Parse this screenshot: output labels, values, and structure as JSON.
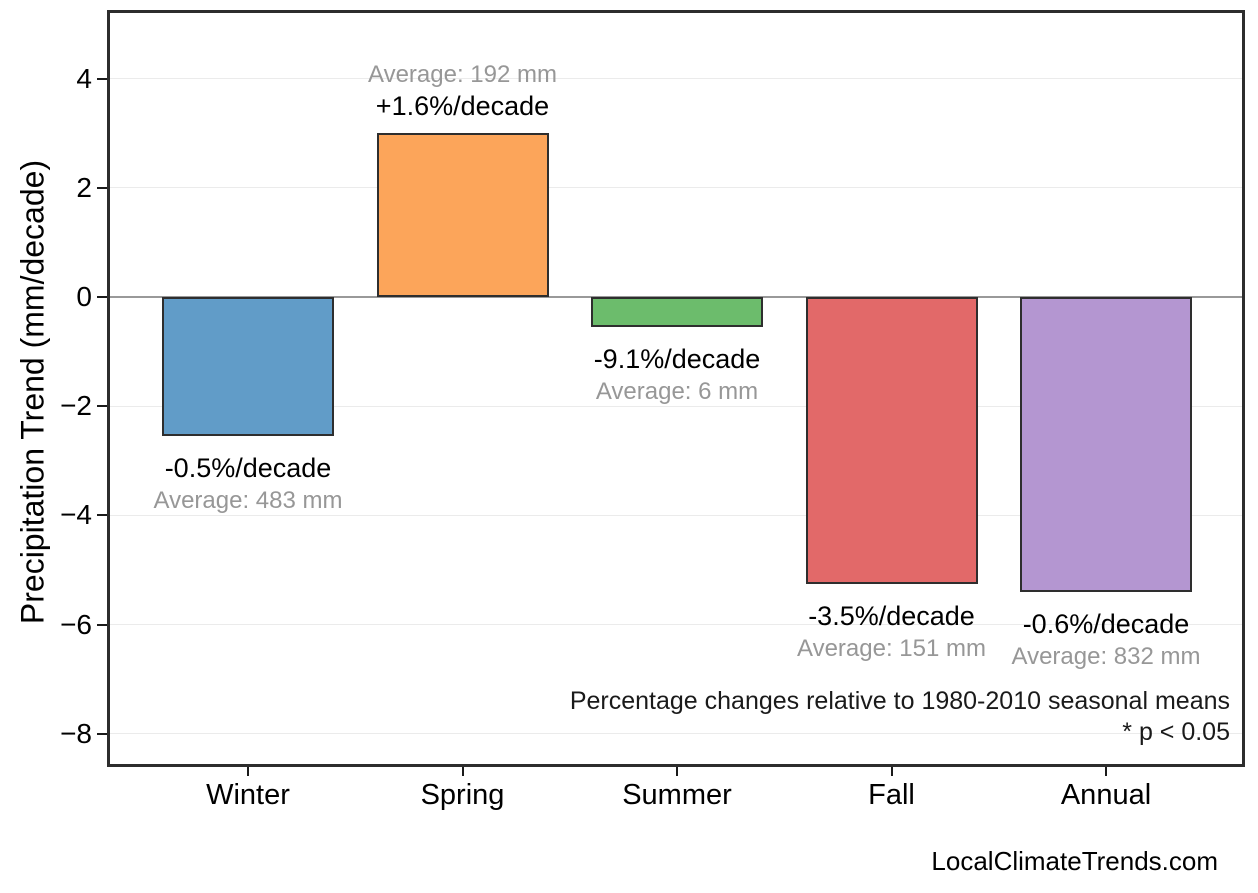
{
  "watermark": "LocalClimateTrends.com",
  "chart_data": {
    "type": "bar",
    "title": "",
    "xlabel": "",
    "ylabel": "Precipitation Trend (mm/decade)",
    "categories": [
      "Winter",
      "Spring",
      "Summer",
      "Fall",
      "Annual"
    ],
    "values": [
      -2.55,
      3.0,
      -0.55,
      -5.25,
      -5.4
    ],
    "pct_labels": [
      "-0.5%/decade",
      "+1.6%/decade",
      "-9.1%/decade",
      "-3.5%/decade",
      "-0.6%/decade"
    ],
    "avg_labels": [
      "Average: 483 mm",
      "Average: 192 mm",
      "Average: 6 mm",
      "Average: 151 mm",
      "Average: 832 mm"
    ],
    "bar_colors": [
      "#619CC8",
      "#FCA55A",
      "#6CBC6C",
      "#E26969",
      "#B496D1"
    ],
    "bar_edge_color": "#2e2e2e",
    "yticks": [
      4,
      2,
      0,
      -2,
      -4,
      -6,
      -8
    ],
    "ylim": [
      -8.55,
      5.2
    ],
    "grid": true,
    "grid_color": "#ebebeb",
    "zero_line_color": "#999999",
    "legend": "none",
    "annotations": [
      "Percentage changes relative to 1980-2010 seasonal means",
      "* p < 0.05"
    ]
  }
}
